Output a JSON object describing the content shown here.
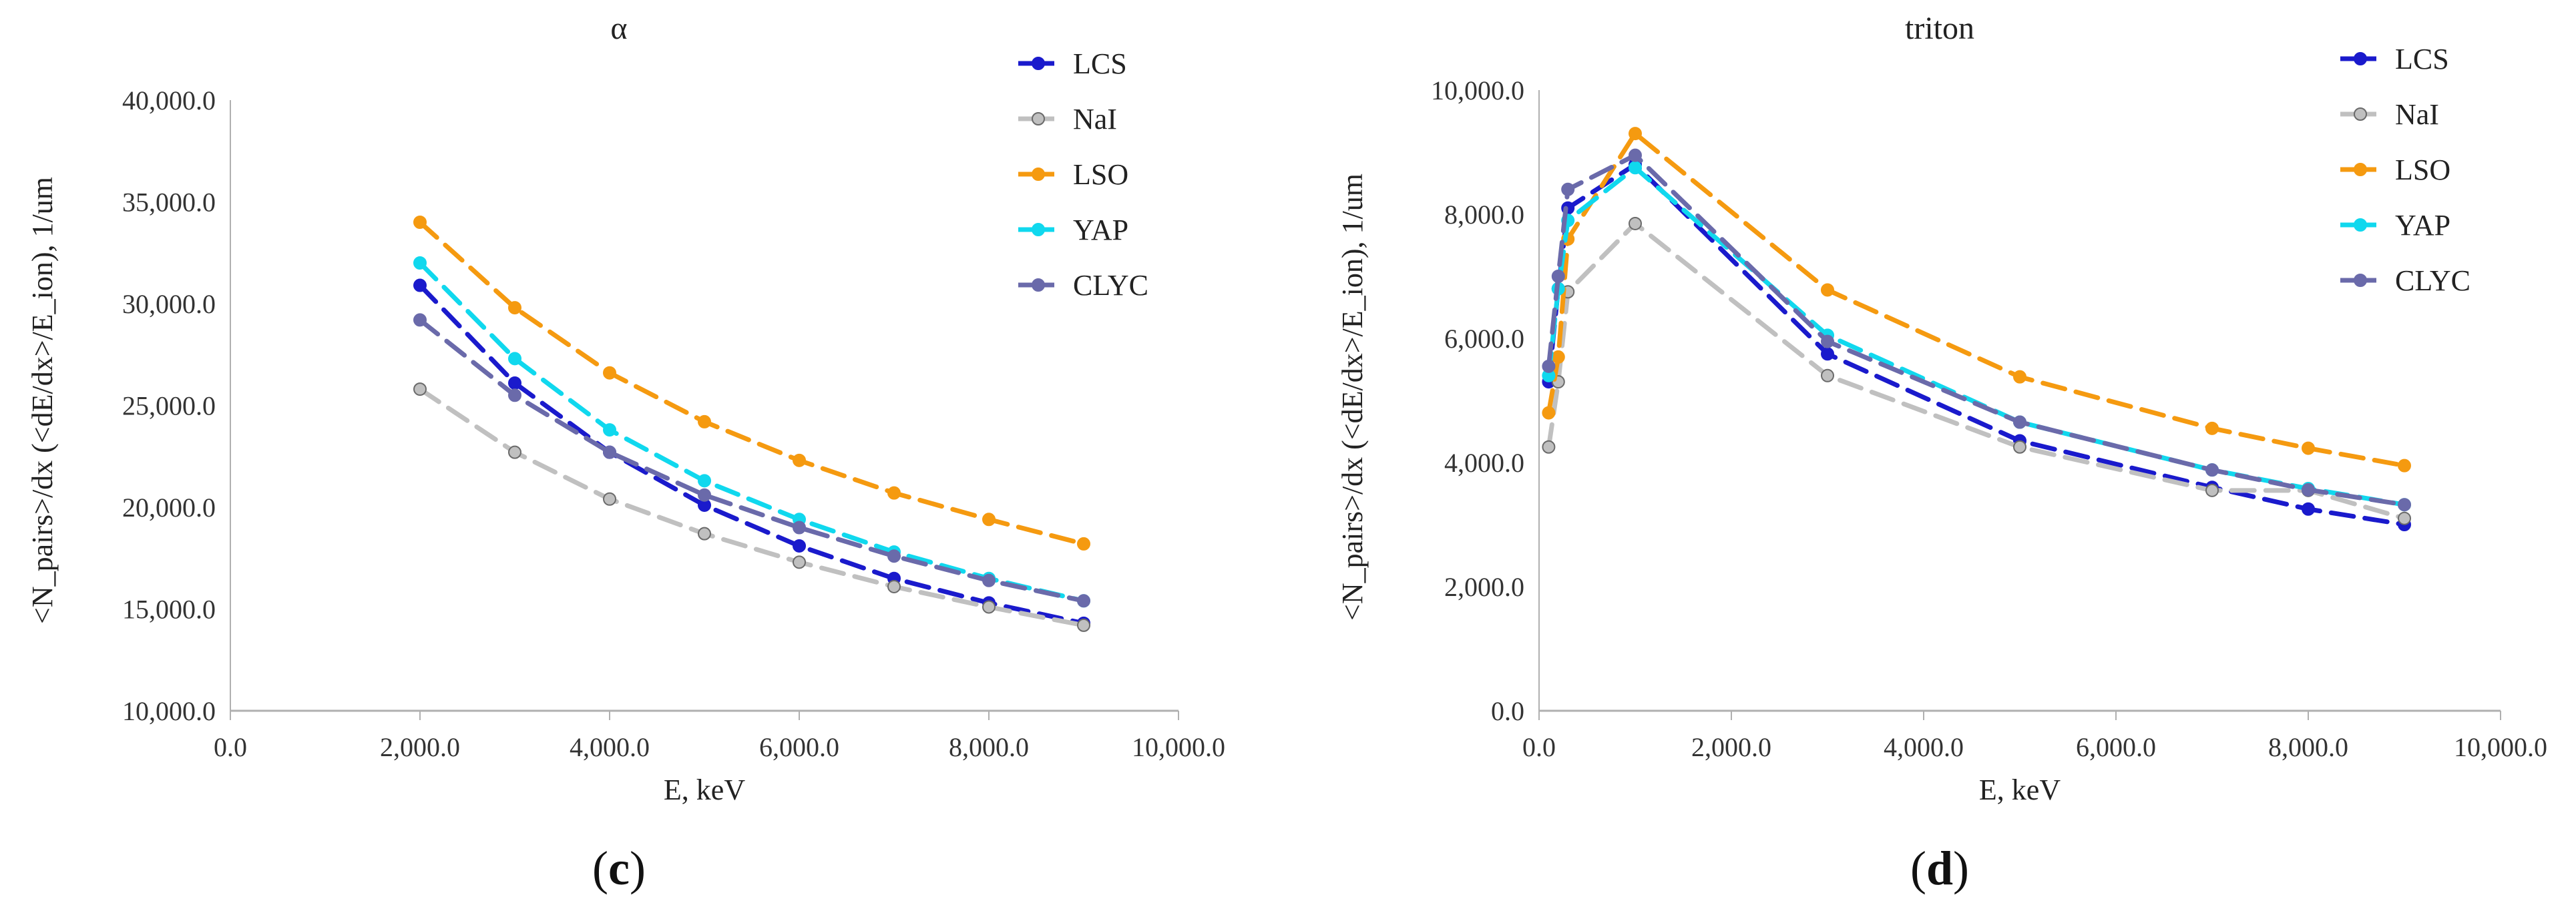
{
  "chart_data": [
    {
      "type": "line",
      "panel_label": "(c)",
      "panel_letter": "c",
      "title": "α",
      "xlabel": "E, keV",
      "ylabel": "<N_pairs>/dx   (<dE/dx>/E_ion), 1/um",
      "xlim": [
        0,
        10000
      ],
      "ylim": [
        10000,
        40000
      ],
      "x_ticks": [
        "0.0",
        "2,000.0",
        "4,000.0",
        "6,000.0",
        "8,000.0",
        "10,000.0"
      ],
      "y_ticks": [
        "10,000.0",
        "15,000.0",
        "20,000.0",
        "25,000.0",
        "30,000.0",
        "35,000.0",
        "40,000.0"
      ],
      "legend_position": "top-right",
      "x": [
        2000,
        3000,
        4000,
        5000,
        6000,
        7000,
        8000,
        9000
      ],
      "series": [
        {
          "name": "LCS",
          "color": "#1a1acc",
          "values": [
            30900,
            26100,
            22700,
            20100,
            18100,
            16500,
            15300,
            14300
          ]
        },
        {
          "name": "NaI",
          "color": "#c0c0c0",
          "values": [
            25800,
            22700,
            20400,
            18700,
            17300,
            16100,
            15100,
            14200
          ]
        },
        {
          "name": "LSO",
          "color": "#f59a10",
          "values": [
            34000,
            29800,
            26600,
            24200,
            22300,
            20700,
            19400,
            18200
          ]
        },
        {
          "name": "YAP",
          "color": "#10d8ee",
          "values": [
            32000,
            27300,
            23800,
            21300,
            19400,
            17800,
            16500,
            15400
          ]
        },
        {
          "name": "CLYC",
          "color": "#6a6aaa",
          "values": [
            29200,
            25500,
            22700,
            20600,
            19000,
            17600,
            16400,
            15400
          ]
        }
      ]
    },
    {
      "type": "line",
      "panel_label": "(d)",
      "panel_letter": "d",
      "title": "triton",
      "xlabel": "E, keV",
      "ylabel": "<N_pairs>/dx   (<dE/dx>/E_ion), 1/um",
      "xlim": [
        0,
        10000
      ],
      "ylim": [
        0,
        10000
      ],
      "x_ticks": [
        "0.0",
        "2,000.0",
        "4,000.0",
        "6,000.0",
        "8,000.0",
        "10,000.0"
      ],
      "y_ticks": [
        "0.0",
        "2,000.0",
        "4,000.0",
        "6,000.0",
        "8,000.0",
        "10,000.0"
      ],
      "legend_position": "top-right",
      "x": [
        100,
        200,
        300,
        1000,
        3000,
        5000,
        7000,
        8000,
        9000
      ],
      "series": [
        {
          "name": "LCS",
          "color": "#1a1acc",
          "values": [
            5300,
            6800,
            8100,
            8800,
            5750,
            4350,
            3600,
            3250,
            3000
          ]
        },
        {
          "name": "NaI",
          "color": "#c0c0c0",
          "values": [
            4250,
            5300,
            6750,
            7850,
            5400,
            4250,
            3550,
            3550,
            3100
          ]
        },
        {
          "name": "LSO",
          "color": "#f59a10",
          "values": [
            4800,
            5700,
            7600,
            9300,
            6780,
            5380,
            4550,
            4230,
            3950
          ]
        },
        {
          "name": "YAP",
          "color": "#10d8ee",
          "values": [
            5400,
            6800,
            7900,
            8750,
            6050,
            4650,
            3880,
            3580,
            3320
          ]
        },
        {
          "name": "CLYC",
          "color": "#6a6aaa",
          "values": [
            5550,
            7000,
            8400,
            8950,
            5950,
            4650,
            3880,
            3560,
            3320
          ]
        }
      ]
    }
  ]
}
